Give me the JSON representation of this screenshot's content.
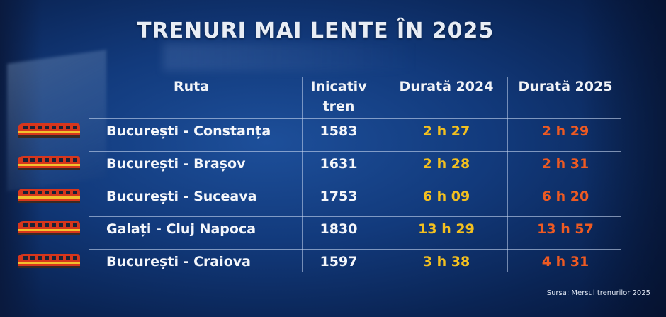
{
  "title": "TRENURI MAI LENTE ÎN 2025",
  "headers": {
    "route": "Ruta",
    "train_line1": "Inicativ",
    "train_line2": "tren",
    "duration_2024": "Durată 2024",
    "duration_2025": "Durată 2025"
  },
  "rows": [
    {
      "route": "București - Constanța",
      "train": "1583",
      "duration_2024": "2 h 27",
      "duration_2025": "2 h 29"
    },
    {
      "route": "București - Brașov",
      "train": "1631",
      "duration_2024": "2 h 28",
      "duration_2025": "2 h 31"
    },
    {
      "route": "București - Suceava",
      "train": "1753",
      "duration_2024": "6 h 09",
      "duration_2025": "6 h 20"
    },
    {
      "route": "Galați - Cluj Napoca",
      "train": "1830",
      "duration_2024": "13 h 29",
      "duration_2025": "13 h 57"
    },
    {
      "route": "București - Craiova",
      "train": "1597",
      "duration_2024": "3 h 38",
      "duration_2025": "4 h 31"
    }
  ],
  "source": "Sursa: Mersul trenurilor 2025",
  "colors": {
    "duration_2024": "#f3c01f",
    "duration_2025": "#ee5a22",
    "train_icon": "#d7361c"
  },
  "icons": {
    "row_icon": "train-icon"
  }
}
